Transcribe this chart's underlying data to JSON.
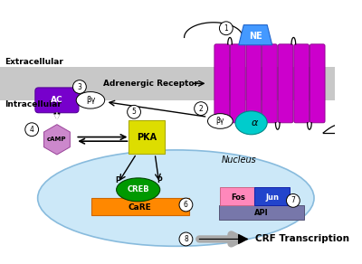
{
  "fig_width": 4.0,
  "fig_height": 2.92,
  "dpi": 100,
  "bg_color": "#ffffff",
  "membrane_color": "#c8c8c8",
  "extracellular_label": "Extracellular",
  "intracellular_label": "Intracellular",
  "adrenergic_label": "Adrenergic Receptor",
  "nucleus_label": "Nucleus",
  "crf_label": "CRF Transcription",
  "ne_color": "#4499ff",
  "receptor_color": "#cc00cc",
  "ac_color": "#7700cc",
  "bg_ellipse_color": "#dddddd",
  "alpha_color": "#00cccc",
  "camp_color": "#cc88cc",
  "pka_color": "#dddd00",
  "creb_color": "#009900",
  "care_color": "#ff8800",
  "fos_color": "#ff88bb",
  "jun_color": "#2244cc",
  "api_color": "#7777aa",
  "nucleus_color": "#cce8f8"
}
